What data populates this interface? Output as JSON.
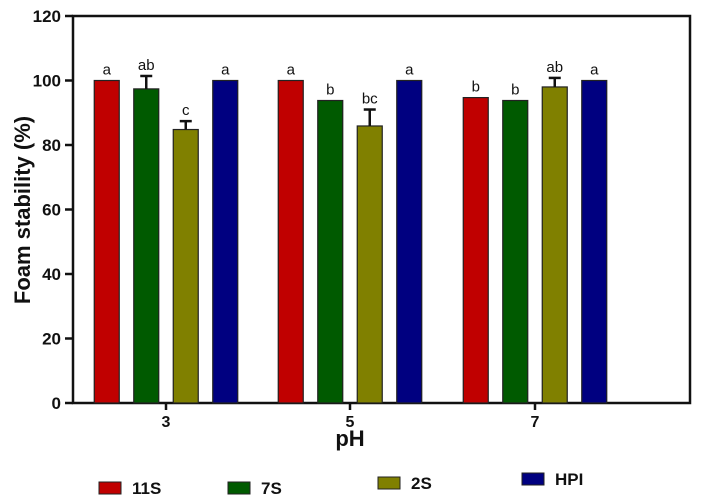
{
  "chart_data": {
    "type": "bar",
    "title": "",
    "xlabel": "pH",
    "ylabel": "Foam stability (%)",
    "ylim": [
      0,
      120
    ],
    "yticks": [
      0,
      20,
      40,
      60,
      80,
      100,
      120
    ],
    "categories": [
      "3",
      "5",
      "7"
    ],
    "series": [
      {
        "name": "11S",
        "color": "#c00000",
        "values": [
          100,
          100,
          94.7
        ],
        "errors": [
          0,
          0,
          0
        ],
        "letters": [
          "a",
          "a",
          "b"
        ]
      },
      {
        "name": "7S",
        "color": "#005a00",
        "values": [
          97.4,
          93.8,
          93.8
        ],
        "errors": [
          4.0,
          0,
          0
        ],
        "letters": [
          "ab",
          "b",
          "b"
        ]
      },
      {
        "name": "2S",
        "color": "#808000",
        "values": [
          84.8,
          85.9,
          98.0
        ],
        "errors": [
          2.6,
          5.1,
          2.8
        ],
        "letters": [
          "c",
          "bc",
          "ab"
        ]
      },
      {
        "name": "HPI",
        "color": "#000080",
        "values": [
          100,
          100,
          100
        ],
        "errors": [
          0,
          0,
          0
        ],
        "letters": [
          "a",
          "a",
          "a"
        ]
      }
    ],
    "legend_position": "bottom",
    "grid": false
  }
}
